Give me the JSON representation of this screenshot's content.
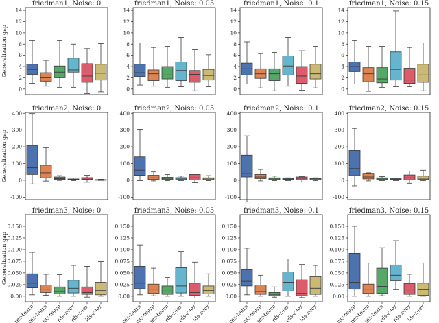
{
  "figure": {
    "ylabel": "Generalization gap",
    "categories": [
      "rds-tourn",
      "rds-tourn",
      "ids-tourn",
      "rds-ε-lex",
      "rds-ε-lex",
      "ids-ε-lex"
    ],
    "colors": [
      "#4c72b0",
      "#dd8452",
      "#55a868",
      "#64b5cd",
      "#dd5c6c",
      "#ccb974"
    ]
  },
  "chart_data": [
    {
      "type": "box",
      "title": "friedman1, Noise: 0",
      "ylabel": "Generalization gap",
      "ylim": [
        -1,
        14.5
      ],
      "yticks": [
        0,
        2,
        4,
        6,
        8,
        10,
        12,
        14
      ],
      "boxes": [
        {
          "min": 1.0,
          "q1": 2.6,
          "median": 3.5,
          "q3": 4.4,
          "max": 8.6
        },
        {
          "min": 0.5,
          "q1": 1.4,
          "median": 2.0,
          "q3": 2.9,
          "max": 5.1
        },
        {
          "min": 0.3,
          "q1": 2.0,
          "median": 3.0,
          "q3": 4.1,
          "max": 8.6
        },
        {
          "min": 0.3,
          "q1": 3.0,
          "median": 3.4,
          "q3": 5.5,
          "max": 8.0
        },
        {
          "min": -0.8,
          "q1": 1.2,
          "median": 2.3,
          "q3": 4.5,
          "max": 7.2
        },
        {
          "min": -0.5,
          "q1": 1.6,
          "median": 2.8,
          "q3": 4.4,
          "max": 8.1
        }
      ]
    },
    {
      "type": "box",
      "title": "friedman1, Noise: 0.05",
      "ylabel": "",
      "ylim": [
        -1,
        14.5
      ],
      "yticks": [
        0,
        2,
        4,
        6,
        8,
        10,
        12,
        14
      ],
      "boxes": [
        {
          "min": 0.7,
          "q1": 2.2,
          "median": 2.9,
          "q3": 4.4,
          "max": 8.2
        },
        {
          "min": 0.5,
          "q1": 1.5,
          "median": 2.7,
          "q3": 3.4,
          "max": 7.4
        },
        {
          "min": 0.3,
          "q1": 1.8,
          "median": 2.5,
          "q3": 4.0,
          "max": 7.6
        },
        {
          "min": 0.4,
          "q1": 1.5,
          "median": 3.3,
          "q3": 4.8,
          "max": 9.2
        },
        {
          "min": -0.3,
          "q1": 1.2,
          "median": 2.6,
          "q3": 3.3,
          "max": 7.0
        },
        {
          "min": 0.4,
          "q1": 1.6,
          "median": 2.4,
          "q3": 3.5,
          "max": 6.1
        }
      ]
    },
    {
      "type": "box",
      "title": "friedman1, Noise: 0.1",
      "ylabel": "",
      "ylim": [
        -1,
        14.5
      ],
      "yticks": [
        0,
        2,
        4,
        6,
        8,
        10,
        12,
        14
      ],
      "boxes": [
        {
          "min": 0.9,
          "q1": 2.5,
          "median": 3.6,
          "q3": 4.6,
          "max": 8.4
        },
        {
          "min": 0.2,
          "q1": 1.9,
          "median": 2.7,
          "q3": 3.6,
          "max": 6.3
        },
        {
          "min": -0.3,
          "q1": 1.5,
          "median": 2.7,
          "q3": 3.6,
          "max": 6.5
        },
        {
          "min": 0.5,
          "q1": 2.5,
          "median": 4.1,
          "q3": 5.9,
          "max": 9.2
        },
        {
          "min": -0.2,
          "q1": 1.0,
          "median": 2.3,
          "q3": 4.0,
          "max": 6.8
        },
        {
          "min": 0.2,
          "q1": 1.8,
          "median": 2.7,
          "q3": 4.4,
          "max": 7.6
        }
      ]
    },
    {
      "type": "box",
      "title": "friedman1, Noise: 0.15",
      "ylabel": "",
      "ylim": [
        -1,
        14.5
      ],
      "yticks": [
        0,
        2,
        4,
        6,
        8,
        10,
        12,
        14
      ],
      "boxes": [
        {
          "min": 0.9,
          "q1": 3.1,
          "median": 4.0,
          "q3": 4.8,
          "max": 8.6
        },
        {
          "min": -0.4,
          "q1": 1.3,
          "median": 2.7,
          "q3": 3.8,
          "max": 7.6
        },
        {
          "min": 0.3,
          "q1": 1.1,
          "median": 1.8,
          "q3": 3.8,
          "max": 7.6
        },
        {
          "min": 0.4,
          "q1": 1.6,
          "median": 3.5,
          "q3": 6.6,
          "max": 13.9
        },
        {
          "min": 0.4,
          "q1": 1.0,
          "median": 1.6,
          "q3": 3.7,
          "max": 7.4
        },
        {
          "min": -0.3,
          "q1": 1.2,
          "median": 2.5,
          "q3": 4.4,
          "max": 8.2
        }
      ]
    },
    {
      "type": "box",
      "title": "friedman2, Noise: 0",
      "ylabel": "Generalization gap",
      "ylim": [
        -115,
        405
      ],
      "yticks": [
        -100,
        0,
        100,
        200,
        300,
        400
      ],
      "boxes": [
        {
          "min": -22,
          "q1": 35,
          "median": 75,
          "q3": 208,
          "max": 398
        },
        {
          "min": -5,
          "q1": 15,
          "median": 45,
          "q3": 90,
          "max": 195
        },
        {
          "min": -1,
          "q1": 5,
          "median": 10,
          "q3": 20,
          "max": 28
        },
        {
          "min": -2,
          "q1": 2,
          "median": 5,
          "q3": 8,
          "max": 14
        },
        {
          "min": -12,
          "q1": 3,
          "median": 7,
          "q3": 16,
          "max": 30
        },
        {
          "min": -1,
          "q1": 0,
          "median": 2,
          "q3": 4,
          "max": 6
        }
      ]
    },
    {
      "type": "box",
      "title": "friedman2, Noise: 0.05",
      "ylabel": "",
      "ylim": [
        -115,
        405
      ],
      "yticks": [
        -100,
        0,
        100,
        200,
        300,
        400
      ],
      "boxes": [
        {
          "min": -2,
          "q1": 30,
          "median": 60,
          "q3": 140,
          "max": 305
        },
        {
          "min": -4,
          "q1": 5,
          "median": 15,
          "q3": 30,
          "max": 50
        },
        {
          "min": -3,
          "q1": 3,
          "median": 8,
          "q3": 18,
          "max": 35
        },
        {
          "min": -2,
          "q1": 3,
          "median": 8,
          "q3": 16,
          "max": 25
        },
        {
          "min": -15,
          "q1": 2,
          "median": 15,
          "q3": 35,
          "max": 38
        },
        {
          "min": -2,
          "q1": 3,
          "median": 8,
          "q3": 15,
          "max": 28
        }
      ]
    },
    {
      "type": "box",
      "title": "friedman2, Noise: 0.1",
      "ylabel": "",
      "ylim": [
        -115,
        405
      ],
      "yticks": [
        -100,
        0,
        100,
        200,
        300,
        400
      ],
      "boxes": [
        {
          "min": -130,
          "q1": 20,
          "median": 40,
          "q3": 150,
          "max": 265
        },
        {
          "min": -4,
          "q1": 10,
          "median": 20,
          "q3": 35,
          "max": 65
        },
        {
          "min": -2,
          "q1": 3,
          "median": 8,
          "q3": 15,
          "max": 25
        },
        {
          "min": -2,
          "q1": 2,
          "median": 6,
          "q3": 10,
          "max": 15
        },
        {
          "min": -10,
          "q1": 3,
          "median": 12,
          "q3": 20,
          "max": 22
        },
        {
          "min": -3,
          "q1": 3,
          "median": 8,
          "q3": 10,
          "max": 15
        }
      ]
    },
    {
      "type": "box",
      "title": "friedman2, Noise: 0.15",
      "ylabel": "",
      "ylim": [
        -115,
        405
      ],
      "yticks": [
        -100,
        0,
        100,
        200,
        300,
        400
      ],
      "boxes": [
        {
          "min": -33,
          "q1": 28,
          "median": 70,
          "q3": 178,
          "max": 310
        },
        {
          "min": -4,
          "q1": 8,
          "median": 20,
          "q3": 42,
          "max": 45
        },
        {
          "min": -2,
          "q1": 3,
          "median": 8,
          "q3": 15,
          "max": 22
        },
        {
          "min": -2,
          "q1": 2,
          "median": 6,
          "q3": 10,
          "max": 14
        },
        {
          "min": -18,
          "q1": 3,
          "median": 15,
          "q3": 32,
          "max": 55
        },
        {
          "min": -3,
          "q1": 5,
          "median": 12,
          "q3": 25,
          "max": 60
        }
      ]
    },
    {
      "type": "box",
      "title": "friedman3, Noise: 0",
      "ylabel": "Generalization gap",
      "ylim": [
        -0.012,
        0.175
      ],
      "yticks": [
        0.0,
        0.025,
        0.05,
        0.075,
        0.1,
        0.125,
        0.15
      ],
      "tick_labels": [
        "0.00",
        "0.025",
        "0.050",
        "0.075",
        "0.100",
        "0.125",
        "0.150"
      ],
      "boxes": [
        {
          "min": 0.003,
          "q1": 0.018,
          "median": 0.028,
          "q3": 0.048,
          "max": 0.094
        },
        {
          "min": 0.002,
          "q1": 0.008,
          "median": 0.015,
          "q3": 0.024,
          "max": 0.047
        },
        {
          "min": 0.0,
          "q1": 0.005,
          "median": 0.01,
          "q3": 0.02,
          "max": 0.046
        },
        {
          "min": 0.0,
          "q1": 0.007,
          "median": 0.017,
          "q3": 0.034,
          "max": 0.066
        },
        {
          "min": -0.002,
          "q1": 0.004,
          "median": 0.008,
          "q3": 0.02,
          "max": 0.064
        },
        {
          "min": 0.0,
          "q1": 0.003,
          "median": 0.012,
          "q3": 0.03,
          "max": 0.074
        }
      ]
    },
    {
      "type": "box",
      "title": "friedman3, Noise: 0.05",
      "ylabel": "",
      "ylim": [
        -0.012,
        0.175
      ],
      "yticks": [
        0.0,
        0.025,
        0.05,
        0.075,
        0.1,
        0.125,
        0.15
      ],
      "tick_labels": [
        "0.00",
        "0.025",
        "0.050",
        "0.075",
        "0.100",
        "0.125",
        "0.150"
      ],
      "boxes": [
        {
          "min": 0.003,
          "q1": 0.016,
          "median": 0.028,
          "q3": 0.064,
          "max": 0.11
        },
        {
          "min": 0.001,
          "q1": 0.006,
          "median": 0.015,
          "q3": 0.026,
          "max": 0.06
        },
        {
          "min": 0.0,
          "q1": 0.004,
          "median": 0.011,
          "q3": 0.022,
          "max": 0.04
        },
        {
          "min": 0.0,
          "q1": 0.007,
          "median": 0.022,
          "q3": 0.061,
          "max": 0.096
        },
        {
          "min": -0.004,
          "q1": 0.002,
          "median": 0.008,
          "q3": 0.028,
          "max": 0.073
        },
        {
          "min": 0.0,
          "q1": 0.005,
          "median": 0.012,
          "q3": 0.022,
          "max": 0.048
        }
      ]
    },
    {
      "type": "box",
      "title": "friedman3, Noise: 0.1",
      "ylabel": "",
      "ylim": [
        -0.012,
        0.175
      ],
      "yticks": [
        0.0,
        0.025,
        0.05,
        0.075,
        0.1,
        0.125,
        0.15
      ],
      "tick_labels": [
        "0.00",
        "0.025",
        "0.050",
        "0.075",
        "0.100",
        "0.125",
        "0.150"
      ],
      "boxes": [
        {
          "min": 0.003,
          "q1": 0.022,
          "median": 0.032,
          "q3": 0.058,
          "max": 0.103
        },
        {
          "min": 0.0,
          "q1": 0.004,
          "median": 0.01,
          "q3": 0.024,
          "max": 0.045
        },
        {
          "min": -0.002,
          "q1": 0.001,
          "median": 0.004,
          "q3": 0.008,
          "max": 0.02
        },
        {
          "min": 0.0,
          "q1": 0.011,
          "median": 0.03,
          "q3": 0.052,
          "max": 0.08
        },
        {
          "min": -0.003,
          "q1": 0.001,
          "median": 0.006,
          "q3": 0.035,
          "max": 0.068
        },
        {
          "min": 0.0,
          "q1": 0.004,
          "median": 0.017,
          "q3": 0.042,
          "max": 0.066
        }
      ]
    },
    {
      "type": "box",
      "title": "friedman3, Noise: 0.15",
      "ylabel": "",
      "ylim": [
        -0.012,
        0.175
      ],
      "yticks": [
        0.0,
        0.025,
        0.05,
        0.075,
        0.1,
        0.125,
        0.15
      ],
      "tick_labels": [
        "0.00",
        "0.025",
        "0.050",
        "0.075",
        "0.100",
        "0.125",
        "0.150"
      ],
      "boxes": [
        {
          "min": 0.0,
          "q1": 0.015,
          "median": 0.03,
          "q3": 0.092,
          "max": 0.15
        },
        {
          "min": 0.0,
          "q1": 0.006,
          "median": 0.015,
          "q3": 0.026,
          "max": 0.071
        },
        {
          "min": 0.001,
          "q1": 0.006,
          "median": 0.021,
          "q3": 0.06,
          "max": 0.104
        },
        {
          "min": 0.014,
          "q1": 0.033,
          "median": 0.045,
          "q3": 0.067,
          "max": 0.119
        },
        {
          "min": 0.0,
          "q1": 0.004,
          "median": 0.011,
          "q3": 0.027,
          "max": 0.047
        },
        {
          "min": 0.0,
          "q1": 0.002,
          "median": 0.014,
          "q3": 0.028,
          "max": 0.071
        }
      ]
    }
  ]
}
